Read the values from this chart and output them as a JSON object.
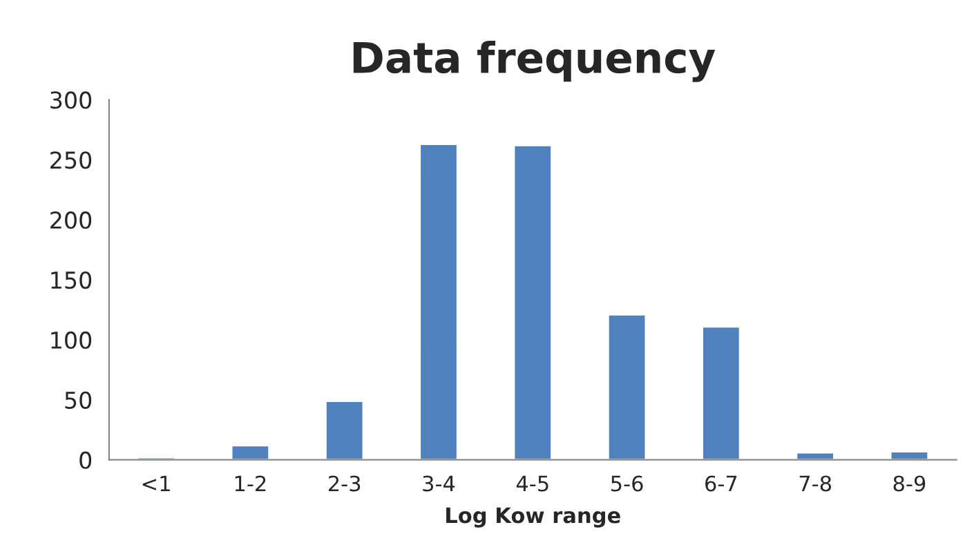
{
  "chart_data": {
    "type": "bar",
    "title": "Data frequency",
    "xlabel": "Log Kow range",
    "categories": [
      "<1",
      "1-2",
      "2-3",
      "3-4",
      "4-5",
      "5-6",
      "6-7",
      "7-8",
      "8-9"
    ],
    "values": [
      2,
      12,
      49,
      263,
      262,
      121,
      111,
      6,
      7
    ],
    "color": "#4f81bd",
    "ylim": [
      0,
      300
    ],
    "yticks": [
      0,
      50,
      100,
      150,
      200,
      250,
      300
    ],
    "grid": false,
    "legend": false
  }
}
